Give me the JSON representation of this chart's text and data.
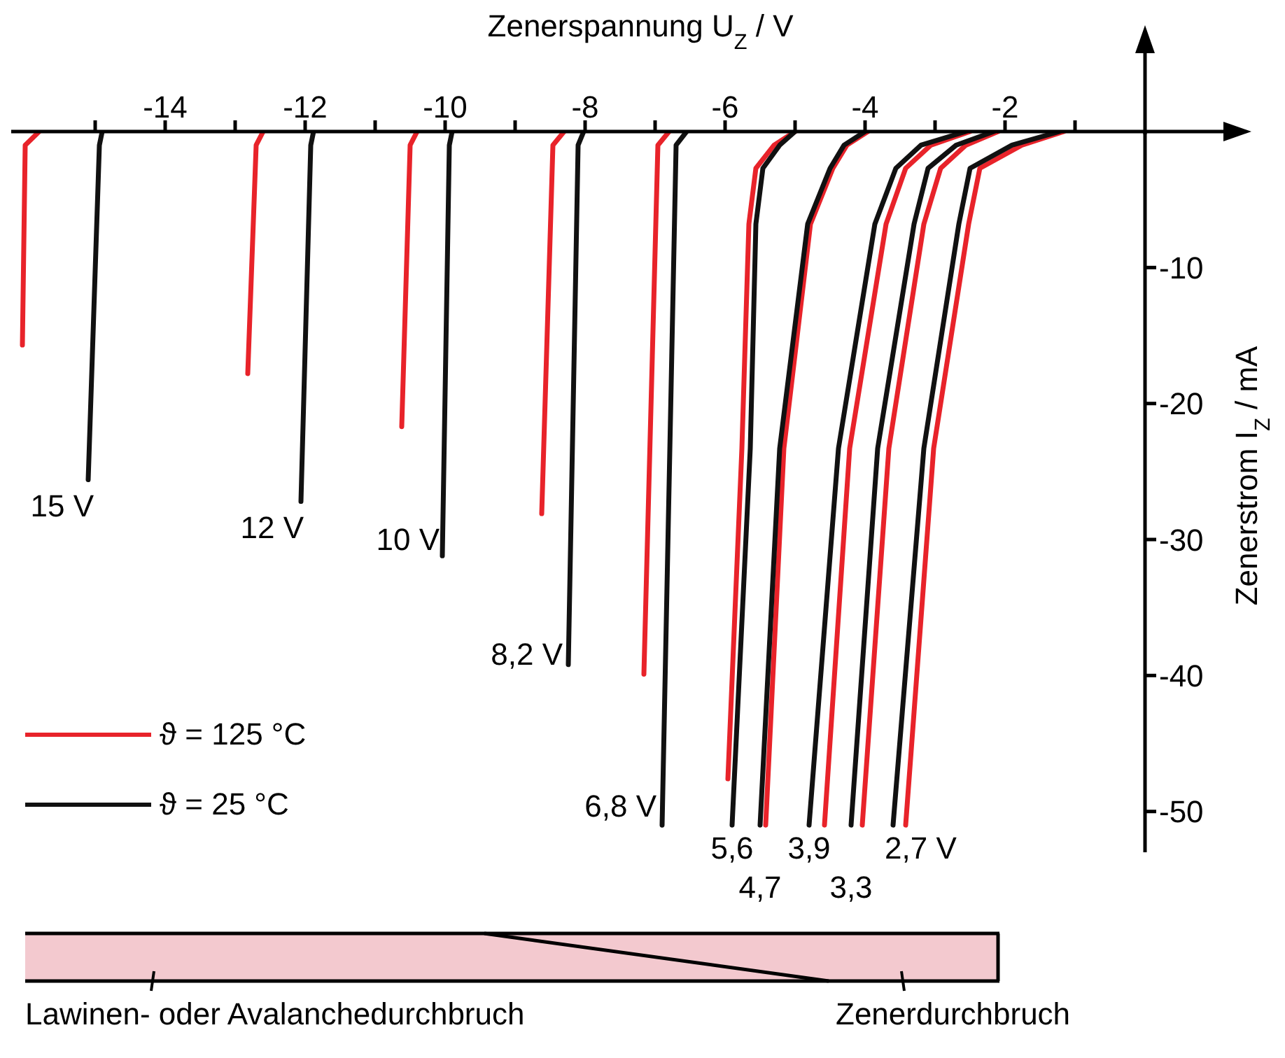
{
  "chart_data": {
    "type": "line",
    "xlabel": "Zenerspannung U$_{Z}$ / V",
    "ylabel": "Zenerstrom I$_{Z}$ / mA",
    "xlim": [
      -16.2,
      0
    ],
    "ylim": [
      -53,
      0
    ],
    "xticks": [
      {
        "value": -15,
        "label": null
      },
      -14,
      {
        "value": -13,
        "label": null
      },
      -12,
      {
        "value": -11,
        "label": null
      },
      -10,
      {
        "value": -9,
        "label": null
      },
      -8,
      {
        "value": -7,
        "label": null
      },
      -6,
      {
        "value": -5,
        "label": null
      },
      -4,
      {
        "value": -3,
        "label": null
      },
      -2,
      {
        "value": -1,
        "label": null
      }
    ],
    "yticks": [
      -50,
      -40,
      -30,
      -20,
      -10
    ],
    "legend": "left",
    "marker": "none",
    "line_style": "solid",
    "series": [
      {
        "name": "ϑ = 125 °C",
        "color": "#e8232a",
        "x": [
          -15.8,
          -16.0,
          -16.04
        ],
        "values": [
          0,
          -1,
          -15.7
        ]
      },
      {
        "name": "ϑ = 25 °C",
        "color": "#111111",
        "x": [
          -14.9,
          -14.94,
          -15.1
        ],
        "values": [
          0,
          -1,
          -25.6
        ]
      },
      {
        "color": "#e8232a",
        "x": [
          -12.6,
          -12.7,
          -12.82
        ],
        "values": [
          0,
          -1,
          -17.8
        ]
      },
      {
        "color": "#111111",
        "x": [
          -11.88,
          -11.92,
          -12.06
        ],
        "values": [
          0,
          -1,
          -27.2
        ]
      },
      {
        "color": "#e8232a",
        "x": [
          -10.4,
          -10.5,
          -10.62
        ],
        "values": [
          0,
          -1,
          -21.7
        ]
      },
      {
        "color": "#111111",
        "x": [
          -9.9,
          -9.94,
          -10.04
        ],
        "values": [
          0,
          -1,
          -31.2
        ]
      },
      {
        "color": "#e8232a",
        "x": [
          -8.3,
          -8.46,
          -8.62
        ],
        "values": [
          0,
          -1,
          -28.1
        ]
      },
      {
        "color": "#111111",
        "x": [
          -8.02,
          -8.1,
          -8.24
        ],
        "values": [
          0,
          -1,
          -39.2
        ]
      },
      {
        "color": "#e8232a",
        "x": [
          -6.8,
          -6.96,
          -7.16
        ],
        "values": [
          0,
          -1,
          -39.9
        ]
      },
      {
        "color": "#111111",
        "x": [
          -6.55,
          -6.7,
          -6.9
        ],
        "values": [
          0,
          -1,
          -51
        ]
      },
      {
        "color": "#e8232a",
        "x": [
          -5.0,
          -5.3,
          -5.56,
          -5.66,
          -5.76,
          -5.96
        ],
        "values": [
          0,
          -1,
          -2.7,
          -6.8,
          -23.3,
          -47.6
        ]
      },
      {
        "color": "#111111",
        "x": [
          -5.0,
          -5.22,
          -5.46,
          -5.56,
          -5.64,
          -5.9
        ],
        "values": [
          0,
          -1,
          -2.7,
          -6.8,
          -23.3,
          -51
        ]
      },
      {
        "color": "#e8232a",
        "x": [
          -3.96,
          -4.26,
          -4.46,
          -4.78,
          -5.16,
          -5.42
        ],
        "values": [
          0,
          -1,
          -2.7,
          -6.8,
          -23.3,
          -51
        ]
      },
      {
        "color": "#111111",
        "x": [
          -4.0,
          -4.3,
          -4.5,
          -4.82,
          -5.22,
          -5.5
        ],
        "values": [
          0,
          -1,
          -2.7,
          -6.8,
          -23.3,
          -51
        ]
      },
      {
        "color": "#e8232a",
        "x": [
          -2.5,
          -3.06,
          -3.42,
          -3.7,
          -4.22,
          -4.58
        ],
        "values": [
          0,
          -1,
          -2.7,
          -6.8,
          -23.3,
          -51
        ]
      },
      {
        "color": "#111111",
        "x": [
          -2.56,
          -3.2,
          -3.56,
          -3.86,
          -4.38,
          -4.8
        ],
        "values": [
          0,
          -1,
          -2.7,
          -6.8,
          -23.3,
          -51
        ]
      },
      {
        "color": "#e8232a",
        "x": [
          -2.1,
          -2.56,
          -2.92,
          -3.16,
          -3.66,
          -4.04
        ],
        "values": [
          0,
          -1,
          -2.7,
          -6.8,
          -23.3,
          -51
        ]
      },
      {
        "color": "#111111",
        "x": [
          -2.16,
          -2.7,
          -3.1,
          -3.3,
          -3.82,
          -4.2
        ],
        "values": [
          0,
          -1,
          -2.7,
          -6.8,
          -23.3,
          -51
        ]
      },
      {
        "color": "#e8232a",
        "x": [
          -1.16,
          -1.76,
          -2.36,
          -2.52,
          -3.02,
          -3.42
        ],
        "values": [
          0,
          -1,
          -2.7,
          -6.8,
          -23.3,
          -51
        ]
      },
      {
        "color": "#111111",
        "x": [
          -1.22,
          -1.9,
          -2.5,
          -2.66,
          -3.16,
          -3.6
        ],
        "values": [
          0,
          -1,
          -2.7,
          -6.8,
          -23.3,
          -51
        ]
      }
    ],
    "annotations": [
      {
        "text": "15 V",
        "x": -15.1,
        "y": -25.6
      },
      {
        "text": "12 V",
        "x": -12.06,
        "y": -27.2
      },
      {
        "text": "10 V",
        "x": -10.04,
        "y": -31.2
      },
      {
        "text": "8,2 V",
        "x": -8.24,
        "y": -39.2
      },
      {
        "text": "6,8 V",
        "x": -6.9,
        "y": -51
      },
      {
        "text": "5,6",
        "x": -5.9,
        "y": -51
      },
      {
        "text": "4,7",
        "x": -5.5,
        "y": -51
      },
      {
        "text": "3,9",
        "x": -4.8,
        "y": -51
      },
      {
        "text": "3,3",
        "x": -4.2,
        "y": -51
      },
      {
        "text": "2,7 V",
        "x": -3.6,
        "y": -51
      },
      "Lawinen- oder Avalanchedurchbruch",
      "Zenerdurchbruch"
    ]
  }
}
